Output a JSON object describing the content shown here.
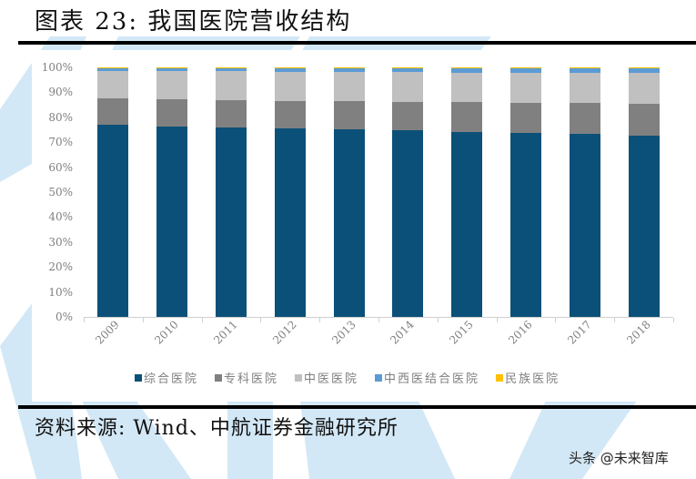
{
  "header": {
    "title": "图表 23: 我国医院营收结构"
  },
  "footer": {
    "source": "资料来源: Wind、中航证券金融研究所",
    "credit": "头条 @未来智库"
  },
  "watermark": {
    "text": "AVIC",
    "color": "#cfe6f5"
  },
  "colors": {
    "综合医院": "#0b5078",
    "专科医院": "#808080",
    "中医医院": "#c0c0c0",
    "中西医结合医院": "#5b9bd5",
    "民族医院": "#ffc000"
  },
  "y_ticks": [
    "100%",
    "90%",
    "80%",
    "70%",
    "60%",
    "50%",
    "40%",
    "30%",
    "20%",
    "10%",
    "0%"
  ],
  "legend": [
    "综合医院",
    "专科医院",
    "中医医院",
    "中西医结合医院",
    "民族医院"
  ],
  "chart_data": {
    "type": "bar",
    "stacked": true,
    "percent_stacked": true,
    "title": "我国医院营收结构",
    "xlabel": "",
    "ylabel": "",
    "ylim": [
      0,
      100
    ],
    "y_tick_format": "percent",
    "grid": false,
    "legend_position": "bottom",
    "categories": [
      "2009",
      "2010",
      "2011",
      "2012",
      "2013",
      "2014",
      "2015",
      "2016",
      "2017",
      "2018"
    ],
    "series": [
      {
        "name": "综合医院",
        "color": "#0b5078",
        "values": [
          77.0,
          76.4,
          76.0,
          75.6,
          75.2,
          74.8,
          74.2,
          73.8,
          73.4,
          72.7
        ]
      },
      {
        "name": "专科医院",
        "color": "#808080",
        "values": [
          10.7,
          10.9,
          11.0,
          11.0,
          11.3,
          11.4,
          12.0,
          12.0,
          12.4,
          12.8
        ]
      },
      {
        "name": "中医医院",
        "color": "#c0c0c0",
        "values": [
          11.0,
          11.3,
          11.5,
          11.7,
          11.7,
          11.9,
          11.8,
          12.0,
          12.0,
          12.2
        ]
      },
      {
        "name": "中西医结合医院",
        "color": "#5b9bd5",
        "values": [
          1.0,
          1.1,
          1.2,
          1.3,
          1.4,
          1.5,
          1.6,
          1.8,
          1.8,
          1.9
        ]
      },
      {
        "name": "民族医院",
        "color": "#ffc000",
        "values": [
          0.3,
          0.3,
          0.3,
          0.4,
          0.4,
          0.4,
          0.4,
          0.4,
          0.4,
          0.4
        ]
      }
    ]
  }
}
